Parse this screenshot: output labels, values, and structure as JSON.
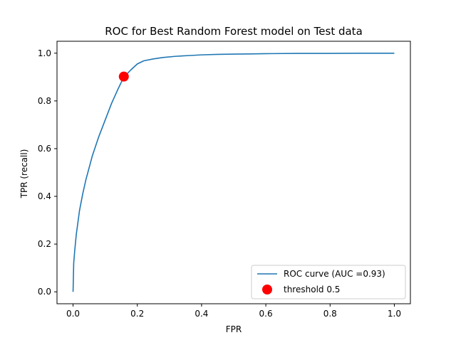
{
  "chart_data": {
    "type": "line",
    "title": "ROC for Best Random Forest model on Test data",
    "xlabel": "FPR",
    "ylabel": "TPR (recall)",
    "xlim": [
      -0.05,
      1.05
    ],
    "ylim": [
      -0.05,
      1.05
    ],
    "grid": false,
    "legend_position": "bottom-right",
    "x_ticks": [
      0.0,
      0.2,
      0.4,
      0.6,
      0.8,
      1.0
    ],
    "x_tick_labels": [
      "0.0",
      "0.2",
      "0.4",
      "0.6",
      "0.8",
      "1.0"
    ],
    "y_ticks": [
      0.0,
      0.2,
      0.4,
      0.6,
      0.8,
      1.0
    ],
    "y_tick_labels": [
      "0.0",
      "0.2",
      "0.4",
      "0.6",
      "0.8",
      "1.0"
    ],
    "series": [
      {
        "name": "ROC curve (AUC =0.93)",
        "kind": "line",
        "color": "#1f77b4",
        "x": [
          0.0,
          0.002,
          0.005,
          0.01,
          0.015,
          0.02,
          0.03,
          0.04,
          0.05,
          0.06,
          0.08,
          0.1,
          0.12,
          0.14,
          0.158,
          0.18,
          0.2,
          0.22,
          0.25,
          0.28,
          0.32,
          0.36,
          0.4,
          0.45,
          0.5,
          0.55,
          0.6,
          0.7,
          0.8,
          0.9,
          1.0
        ],
        "y": [
          0.0,
          0.12,
          0.17,
          0.24,
          0.29,
          0.34,
          0.41,
          0.47,
          0.52,
          0.57,
          0.65,
          0.72,
          0.79,
          0.85,
          0.9,
          0.93,
          0.955,
          0.968,
          0.976,
          0.982,
          0.987,
          0.99,
          0.993,
          0.995,
          0.996,
          0.997,
          0.998,
          0.999,
          0.999,
          1.0,
          1.0
        ]
      },
      {
        "name": "threshold 0.5",
        "kind": "marker",
        "color": "#ff0000",
        "x": [
          0.158
        ],
        "y": [
          0.902
        ]
      }
    ]
  }
}
